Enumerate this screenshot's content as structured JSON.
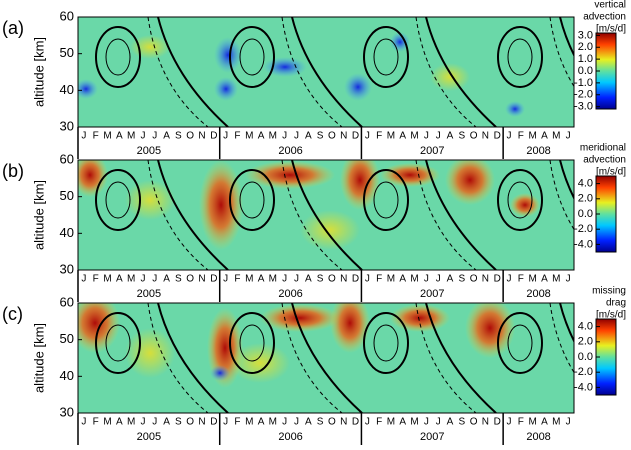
{
  "chart_data": [
    {
      "type": "heatmap",
      "panel_label": "(a)",
      "ylabel": "altitude [km]",
      "ylim": [
        30,
        60
      ],
      "yticks": [
        30,
        40,
        50,
        60
      ],
      "categories": [
        "J",
        "F",
        "M",
        "A",
        "M",
        "J",
        "J",
        "A",
        "S",
        "O",
        "N",
        "D",
        "J",
        "F",
        "M",
        "A",
        "M",
        "J",
        "J",
        "A",
        "S",
        "O",
        "N",
        "D",
        "J",
        "F",
        "M",
        "A",
        "M",
        "J",
        "J",
        "A",
        "S",
        "O",
        "N",
        "D",
        "J",
        "F",
        "M",
        "A",
        "M",
        "J"
      ],
      "years": [
        "2005",
        "2006",
        "2007",
        "2008"
      ],
      "colorbar_title": [
        "vertical",
        "advection",
        "[m/s/d]"
      ],
      "clim": [
        -3.2,
        3.2
      ],
      "cticks": [
        {
          "value": 3,
          "label": "3.0"
        },
        {
          "value": 2,
          "label": "2.0"
        },
        {
          "value": 1,
          "label": "1.0"
        },
        {
          "value": 0,
          "label": "0.0"
        },
        {
          "value": -1,
          "label": "-1.0"
        },
        {
          "value": -2,
          "label": "-2.0"
        },
        {
          "value": -3,
          "label": "-3.0"
        }
      ]
    },
    {
      "type": "heatmap",
      "panel_label": "(b)",
      "ylabel": "altitude [km]",
      "ylim": [
        30,
        60
      ],
      "yticks": [
        30,
        40,
        50,
        60
      ],
      "categories": [
        "J",
        "F",
        "M",
        "A",
        "M",
        "J",
        "J",
        "A",
        "S",
        "O",
        "N",
        "D",
        "J",
        "F",
        "M",
        "A",
        "M",
        "J",
        "J",
        "A",
        "S",
        "O",
        "N",
        "D",
        "J",
        "F",
        "M",
        "A",
        "M",
        "J",
        "J",
        "A",
        "S",
        "O",
        "N",
        "D",
        "J",
        "F",
        "M",
        "A",
        "M",
        "J"
      ],
      "years": [
        "2005",
        "2006",
        "2007",
        "2008"
      ],
      "colorbar_title": [
        "meridional",
        "advection",
        "[m/s/d]"
      ],
      "clim": [
        -5,
        5
      ],
      "cticks": [
        {
          "value": 4,
          "label": "4.0"
        },
        {
          "value": 2,
          "label": "2.0"
        },
        {
          "value": 0,
          "label": "0.0"
        },
        {
          "value": -2,
          "label": "-2.0"
        },
        {
          "value": -4,
          "label": "-4.0"
        }
      ]
    },
    {
      "type": "heatmap",
      "panel_label": "(c)",
      "ylabel": "altitude [km]",
      "ylim": [
        30,
        60
      ],
      "yticks": [
        30,
        40,
        50,
        60
      ],
      "categories": [
        "J",
        "F",
        "M",
        "A",
        "M",
        "J",
        "J",
        "A",
        "S",
        "O",
        "N",
        "D",
        "J",
        "F",
        "M",
        "A",
        "M",
        "J",
        "J",
        "A",
        "S",
        "O",
        "N",
        "D",
        "J",
        "F",
        "M",
        "A",
        "M",
        "J",
        "J",
        "A",
        "S",
        "O",
        "N",
        "D",
        "J",
        "F",
        "M",
        "A",
        "M",
        "J"
      ],
      "years": [
        "2005",
        "2006",
        "2007",
        "2008"
      ],
      "colorbar_title": [
        "missing",
        "drag",
        "[m/s/d]"
      ],
      "clim": [
        -5,
        5
      ],
      "cticks": [
        {
          "value": 4,
          "label": "4.0"
        },
        {
          "value": 2,
          "label": "2.0"
        },
        {
          "value": 0,
          "label": "0.0"
        },
        {
          "value": -2,
          "label": "-2.0"
        },
        {
          "value": -4,
          "label": "-4.0"
        }
      ]
    }
  ]
}
